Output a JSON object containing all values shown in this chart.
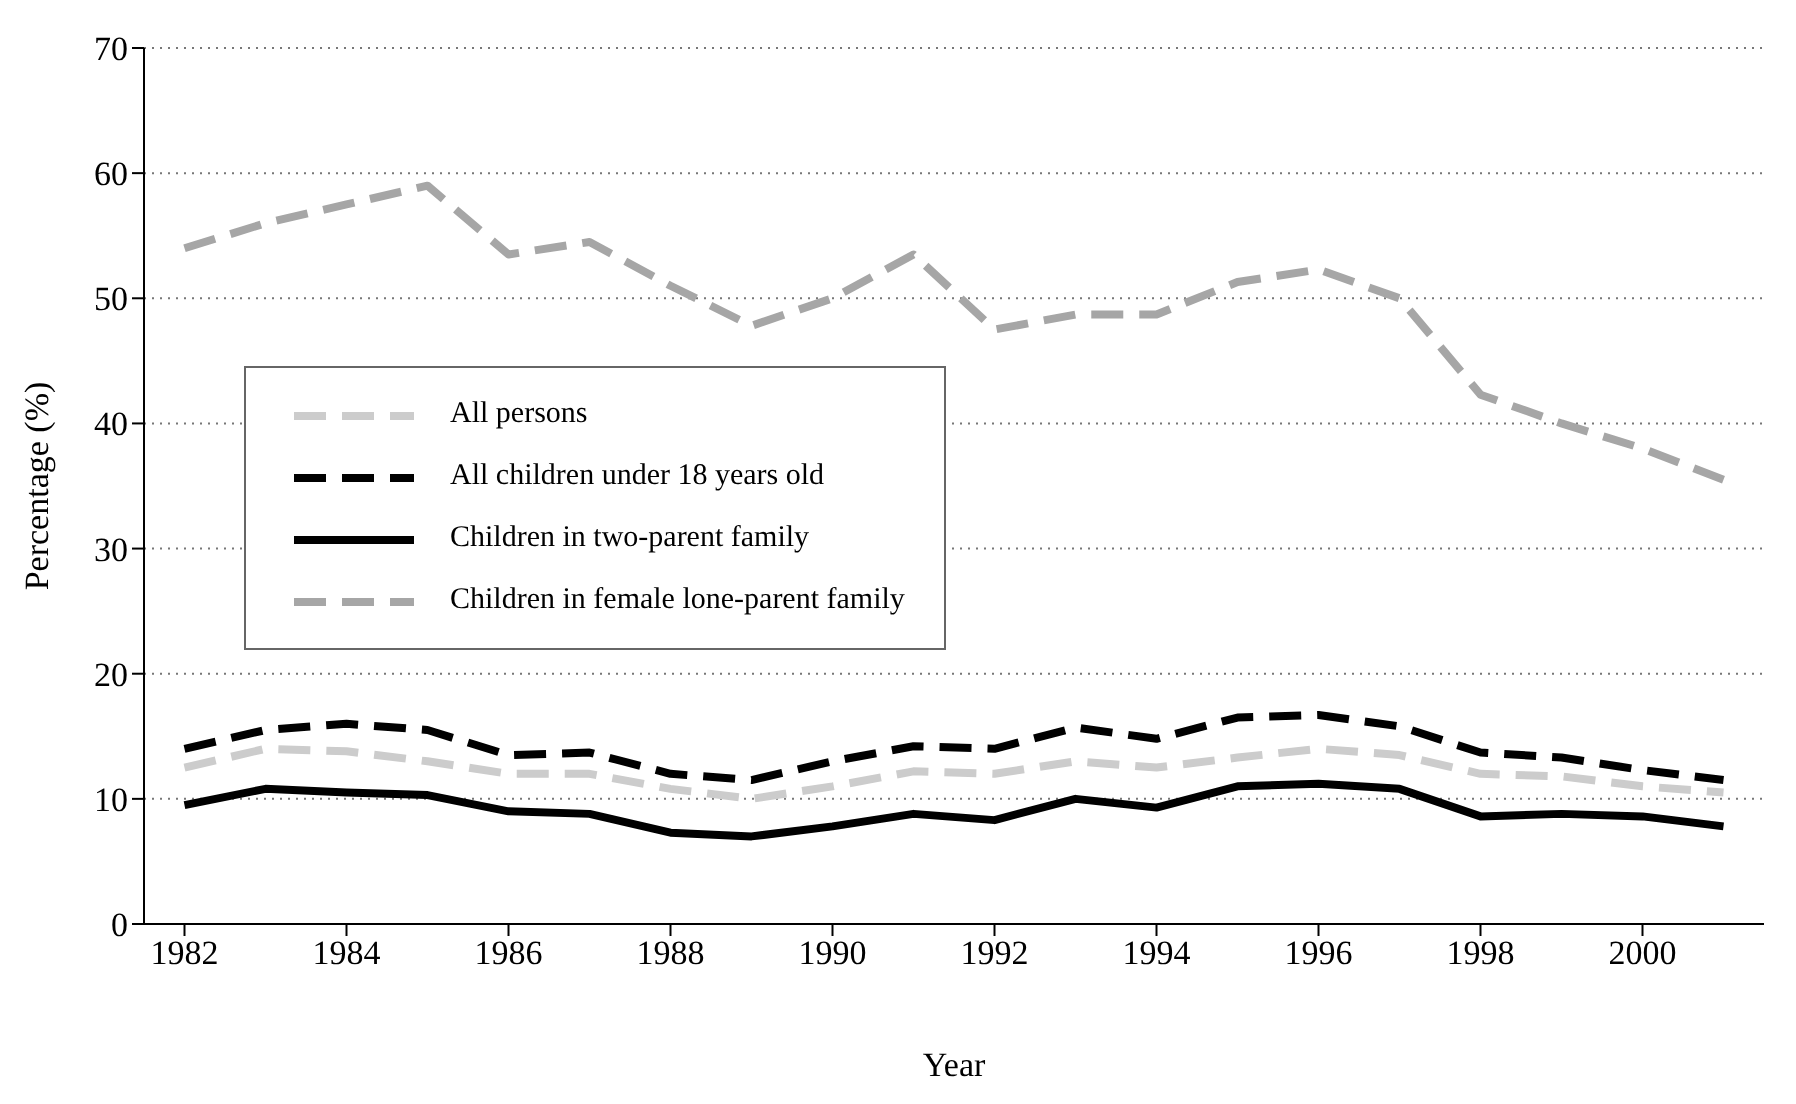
{
  "chart_data": {
    "type": "line",
    "xlabel": "Year",
    "ylabel": "Percentage (%)",
    "x": [
      1982,
      1983,
      1984,
      1985,
      1986,
      1987,
      1988,
      1989,
      1990,
      1991,
      1992,
      1993,
      1994,
      1995,
      1996,
      1997,
      1998,
      1999,
      2000,
      2001
    ],
    "xlim": [
      1981.5,
      2001.5
    ],
    "xticks": [
      1982,
      1984,
      1986,
      1988,
      1990,
      1992,
      1994,
      1996,
      1998,
      2000
    ],
    "ylim": [
      0,
      70
    ],
    "yticks": [
      0,
      10,
      20,
      30,
      40,
      50,
      60,
      70
    ],
    "grid": "y",
    "legend": "left",
    "marker": "none",
    "series": [
      {
        "name": "All persons",
        "color": "#cccccc",
        "line_style": "dashed",
        "values": [
          12.5,
          14,
          13.8,
          13,
          12,
          12,
          10.8,
          10,
          11,
          12.2,
          12,
          13,
          12.5,
          13.3,
          14,
          13.5,
          12,
          11.8,
          11,
          10.5
        ]
      },
      {
        "name": "All children under 18 years old",
        "color": "#000000",
        "line_style": "dashed",
        "values": [
          14,
          15.5,
          16,
          15.5,
          13.5,
          13.7,
          12,
          11.5,
          13,
          14.2,
          14,
          15.7,
          14.8,
          16.5,
          16.7,
          15.8,
          13.7,
          13.3,
          12.3,
          11.5
        ]
      },
      {
        "name": "Children in two-parent family",
        "color": "#000000",
        "line_style": "solid",
        "values": [
          9.5,
          10.8,
          10.5,
          10.3,
          9,
          8.8,
          7.3,
          7,
          7.8,
          8.8,
          8.3,
          10,
          9.3,
          11,
          11.2,
          10.8,
          8.6,
          8.8,
          8.6,
          7.8
        ]
      },
      {
        "name": "Children in female lone-parent family",
        "color": "#a6a6a6",
        "line_style": "dashed",
        "values": [
          54,
          56,
          57.5,
          59,
          53.5,
          54.5,
          51,
          47.8,
          50,
          53.5,
          47.5,
          48.7,
          48.7,
          51.3,
          52.3,
          50,
          42.3,
          40,
          38,
          35.5
        ]
      }
    ]
  }
}
